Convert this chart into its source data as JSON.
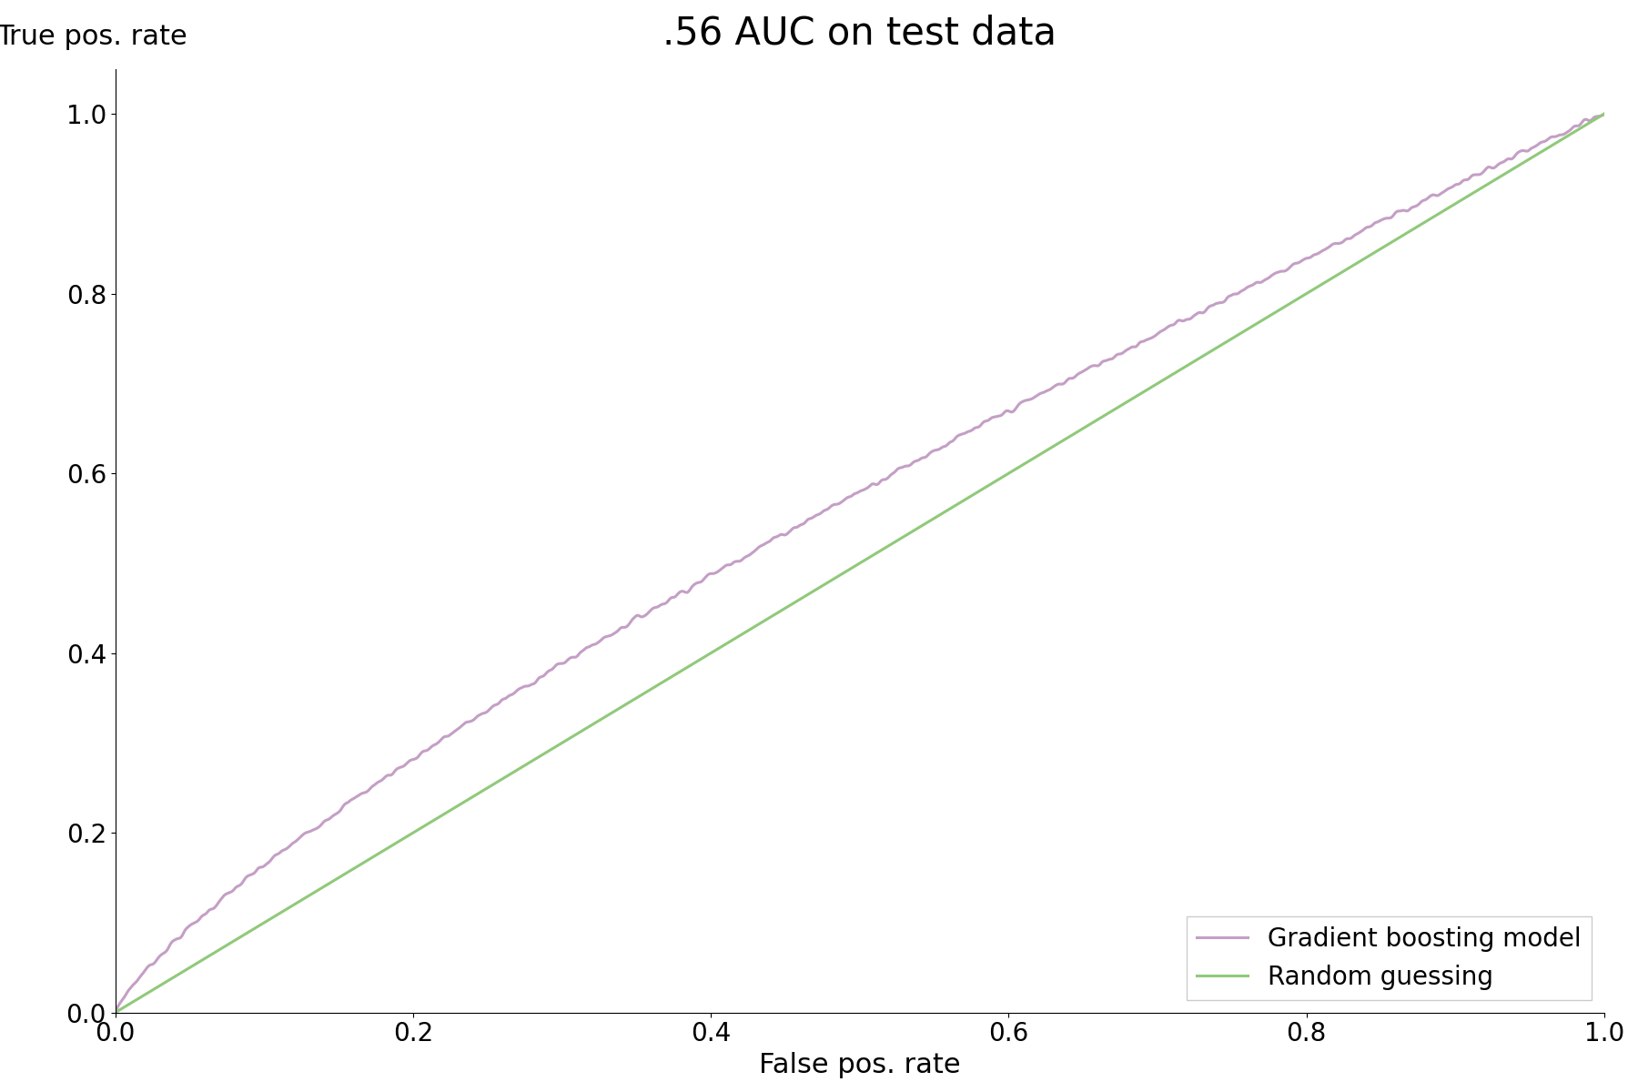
{
  "title": ".56 AUC on test data",
  "xlabel": "False pos. rate",
  "ylabel": "True pos. rate",
  "title_fontsize": 30,
  "label_fontsize": 22,
  "tick_fontsize": 20,
  "legend_fontsize": 20,
  "roc_color": "#c49fc5",
  "random_color": "#90c97a",
  "roc_label": "Gradient boosting model",
  "random_label": "Random guessing",
  "roc_linewidth": 2.2,
  "random_linewidth": 2.2,
  "auc": 0.56,
  "background_color": "#ffffff",
  "figsize": [
    18,
    12
  ]
}
